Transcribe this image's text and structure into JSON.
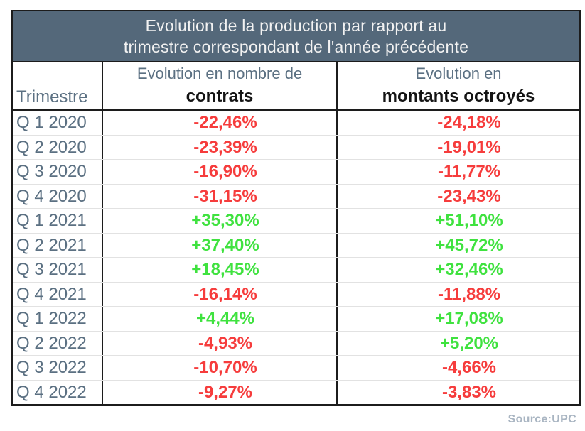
{
  "table": {
    "title": {
      "line1": "Evolution de la production par rapport au",
      "line2": "trimestre correspondant de l'année précédente"
    },
    "header": {
      "trimestre": "Trimestre",
      "contrats_line1": "Evolution en nombre de",
      "contrats_line2": "contrats",
      "montants_line1": "Evolution en",
      "montants_line2": "montants octroyés"
    },
    "rows": [
      {
        "trimestre": "Q 1 2020",
        "contrats": "-22,46%",
        "montants": "-24,18%"
      },
      {
        "trimestre": "Q 2 2020",
        "contrats": "-23,39%",
        "montants": "-19,01%"
      },
      {
        "trimestre": "Q 3 2020",
        "contrats": "-16,90%",
        "montants": "-11,77%"
      },
      {
        "trimestre": "Q 4 2020",
        "contrats": "-31,15%",
        "montants": "-23,43%"
      },
      {
        "trimestre": "Q 1 2021",
        "contrats": "+35,30%",
        "montants": "+51,10%"
      },
      {
        "trimestre": "Q 2 2021",
        "contrats": "+37,40%",
        "montants": "+45,72%"
      },
      {
        "trimestre": "Q 3 2021",
        "contrats": "+18,45%",
        "montants": "+32,46%"
      },
      {
        "trimestre": "Q 4 2021",
        "contrats": "-16,14%",
        "montants": "-11,88%"
      },
      {
        "trimestre": "Q 1 2022",
        "contrats": "+4,44%",
        "montants": "+17,08%"
      },
      {
        "trimestre": "Q 2 2022",
        "contrats": "-4,93%",
        "montants": "+5,20%"
      },
      {
        "trimestre": "Q 3 2022",
        "contrats": "-10,70%",
        "montants": "-4,66%"
      },
      {
        "trimestre": "Q 4 2022",
        "contrats": "-9,27%",
        "montants": "-3,83%"
      }
    ]
  },
  "footer": {
    "source": "Source:UPC"
  },
  "colors": {
    "title_band_bg": "#54687a",
    "title_band_text": "#f2f2f2",
    "slate_text": "#5b7082",
    "bold_header_text": "#141414",
    "positive": "#3fe23f",
    "negative": "#f63c3c",
    "row_separator": "#e2e2e2",
    "table_border": "#1c1c1c",
    "source_text": "#a9b5c2"
  },
  "chart_data": {
    "type": "table",
    "title": "Evolution de la production par rapport au trimestre correspondant de l'année précédente",
    "columns": [
      "Trimestre",
      "Evolution en nombre de contrats",
      "Evolution en montants octroyés"
    ],
    "units": "percent (French decimal comma, explicit + sign for positives)",
    "rows": [
      [
        "Q 1 2020",
        -22.46,
        -24.18
      ],
      [
        "Q 2 2020",
        -23.39,
        -19.01
      ],
      [
        "Q 3 2020",
        -16.9,
        -11.77
      ],
      [
        "Q 4 2020",
        -31.15,
        -23.43
      ],
      [
        "Q 1 2021",
        35.3,
        51.1
      ],
      [
        "Q 2 2021",
        37.4,
        45.72
      ],
      [
        "Q 3 2021",
        18.45,
        32.46
      ],
      [
        "Q 4 2021",
        -16.14,
        -11.88
      ],
      [
        "Q 1 2022",
        4.44,
        17.08
      ],
      [
        "Q 2 2022",
        -4.93,
        5.2
      ],
      [
        "Q 3 2022",
        -10.7,
        -4.66
      ],
      [
        "Q 4 2022",
        -9.27,
        -3.83
      ]
    ],
    "value_color_rule": "negative values red, positive values green",
    "legend_position": "none",
    "source": "Source:UPC"
  }
}
